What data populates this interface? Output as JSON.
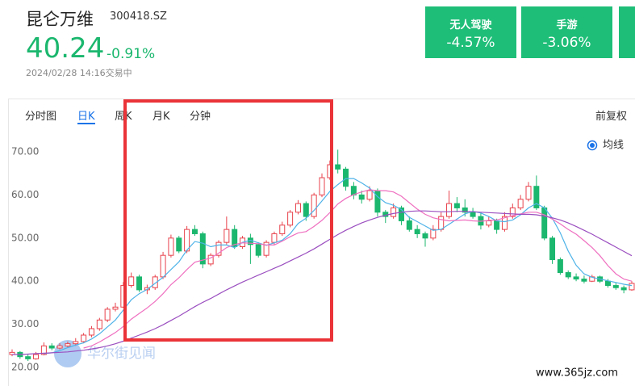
{
  "quote": {
    "name": "昆仑万维",
    "code": "300418.SZ",
    "price": "40.24",
    "change": "-0.91%",
    "time": "2024/02/28 14:16交易中"
  },
  "sectors": [
    {
      "name": "无人驾驶",
      "change": "-4.57%"
    },
    {
      "name": "手游",
      "change": "-3.06%"
    }
  ],
  "tabs": [
    "分时图",
    "日K",
    "周K",
    "月K",
    "分钟",
    "前复权"
  ],
  "watermark": [
    "华尔街见闻",
    "www.365jz.com"
  ],
  "chart_data": {
    "type": "candlestick",
    "legend": "均线",
    "grid": false,
    "up_color": "#e8424c",
    "down_color": "#1bb76e",
    "ylim": [
      16,
      75
    ],
    "yticks": [
      {
        "value": 20,
        "label": "20.00"
      },
      {
        "value": 30,
        "label": "30.00"
      },
      {
        "value": 40,
        "label": "40.00"
      },
      {
        "value": 50,
        "label": "50.00"
      },
      {
        "value": 60,
        "label": "60.00"
      },
      {
        "value": 70,
        "label": "70.00"
      }
    ],
    "candles": [
      [
        23,
        24.2,
        22.6,
        23.5
      ],
      [
        23.5,
        23.8,
        22,
        22.5
      ],
      [
        22.5,
        23,
        21.5,
        22
      ],
      [
        22,
        23.6,
        21.8,
        23
      ],
      [
        23,
        25.8,
        22.8,
        25
      ],
      [
        25,
        25.6,
        24,
        24.5
      ],
      [
        24.5,
        25.6,
        24.2,
        25
      ],
      [
        25,
        26,
        24.6,
        25.5
      ],
      [
        25.5,
        26.8,
        25,
        26
      ],
      [
        26,
        28,
        25.6,
        27.5
      ],
      [
        27.5,
        29.6,
        27,
        29
      ],
      [
        29,
        31.5,
        28.5,
        31
      ],
      [
        31,
        34,
        30.5,
        33.5
      ],
      [
        33.5,
        35,
        33,
        34
      ],
      [
        34,
        39.8,
        33.8,
        39
      ],
      [
        39,
        42,
        38.5,
        41
      ],
      [
        41,
        41.5,
        37.5,
        38
      ],
      [
        38,
        39.2,
        37,
        38.5
      ],
      [
        38.5,
        41.5,
        38,
        41
      ],
      [
        41,
        46.8,
        40.5,
        46
      ],
      [
        46,
        50.8,
        45.5,
        50
      ],
      [
        50,
        50.5,
        46.5,
        47
      ],
      [
        47,
        52.8,
        46.5,
        52
      ],
      [
        52,
        53,
        50.5,
        51
      ],
      [
        51,
        51.5,
        43,
        44
      ],
      [
        44,
        46.5,
        43.5,
        46
      ],
      [
        46,
        49.5,
        45.5,
        49
      ],
      [
        49,
        55,
        48.5,
        52
      ],
      [
        52,
        53,
        47.5,
        48
      ],
      [
        48,
        50.5,
        47.5,
        50
      ],
      [
        50,
        51,
        44,
        48.5
      ],
      [
        48.5,
        49,
        45.5,
        46
      ],
      [
        46,
        49.5,
        45.5,
        49
      ],
      [
        49,
        51.5,
        48.5,
        51
      ],
      [
        51,
        53.8,
        50.5,
        53
      ],
      [
        53,
        56.5,
        52.5,
        56
      ],
      [
        56,
        58.8,
        55.5,
        58
      ],
      [
        58,
        58.5,
        54,
        55
      ],
      [
        55,
        60.5,
        54.5,
        60
      ],
      [
        60,
        65,
        59.5,
        64
      ],
      [
        64,
        68,
        63.5,
        67
      ],
      [
        67,
        70.5,
        65,
        66
      ],
      [
        66,
        66.5,
        61,
        62
      ],
      [
        62,
        63,
        59,
        60
      ],
      [
        60,
        61,
        58,
        59
      ],
      [
        59,
        62,
        58.5,
        61
      ],
      [
        61,
        61.5,
        55,
        56
      ],
      [
        56,
        56.5,
        53.5,
        55
      ],
      [
        55,
        58,
        54.5,
        57
      ],
      [
        57,
        57.5,
        53,
        54
      ],
      [
        54,
        55,
        51.5,
        52
      ],
      [
        52,
        53,
        50,
        51
      ],
      [
        51,
        51.5,
        48,
        50
      ],
      [
        50,
        53,
        49.5,
        52
      ],
      [
        52,
        56,
        51.5,
        55
      ],
      [
        55,
        61,
        54.5,
        58
      ],
      [
        58,
        59.5,
        56,
        57
      ],
      [
        57,
        59,
        55,
        56
      ],
      [
        56,
        57,
        54.5,
        55
      ],
      [
        55,
        56,
        52,
        53
      ],
      [
        53,
        55,
        52.5,
        54
      ],
      [
        54,
        54.5,
        51,
        52
      ],
      [
        52,
        56,
        51.5,
        55
      ],
      [
        55,
        58,
        54.5,
        57
      ],
      [
        57,
        60,
        56.5,
        59
      ],
      [
        59,
        63,
        58.5,
        62
      ],
      [
        62,
        64.5,
        56.5,
        57
      ],
      [
        57,
        57.5,
        49.5,
        50
      ],
      [
        50,
        50.5,
        44,
        45
      ],
      [
        45,
        45.5,
        41.5,
        42
      ],
      [
        42,
        42.5,
        40.5,
        41
      ],
      [
        41,
        41.8,
        40,
        40.5
      ],
      [
        40.5,
        41.3,
        39.5,
        40
      ],
      [
        40,
        41.5,
        39.8,
        41
      ],
      [
        41,
        41.3,
        39.6,
        40
      ],
      [
        40,
        40.5,
        38.5,
        39
      ],
      [
        39,
        39.6,
        38,
        38.5
      ],
      [
        38.5,
        39,
        37.2,
        38
      ],
      [
        38,
        40,
        37.8,
        39.5
      ]
    ],
    "series": [
      {
        "color": "#4fb3e8",
        "values": [
          null,
          null,
          null,
          null,
          23.2,
          23.4,
          23.9,
          24.6,
          25.2,
          25.7,
          26.6,
          27.8,
          29.4,
          31,
          33.3,
          35.7,
          37.1,
          38.1,
          39.5,
          40.9,
          42.7,
          44.5,
          47.2,
          49.2,
          48.8,
          48,
          48.4,
          48.4,
          47.8,
          49,
          49.5,
          48.9,
          48.3,
          48.9,
          49.5,
          51,
          53.4,
          54.6,
          56.4,
          58.6,
          60.8,
          62.4,
          63.8,
          63.8,
          62.8,
          61.6,
          59.6,
          58.2,
          57.6,
          56.6,
          54.8,
          53.8,
          52.8,
          51.8,
          52,
          53.2,
          54.4,
          55.6,
          56.2,
          55.8,
          55,
          54,
          53.8,
          54.2,
          55.4,
          57,
          58,
          57,
          54.6,
          51.2,
          47,
          43.7,
          41.7,
          40.9,
          40.5,
          40.1,
          39.7,
          39.3,
          39
        ]
      },
      {
        "color": "#ef6fc0",
        "values": [
          null,
          null,
          null,
          null,
          null,
          null,
          null,
          null,
          null,
          24.5,
          25,
          25.9,
          27,
          28.1,
          29.5,
          31.2,
          32.5,
          33.8,
          35.3,
          37.1,
          39.2,
          40.8,
          42.7,
          44.4,
          44.9,
          45.4,
          46.5,
          47.8,
          48.5,
          48.9,
          48.8,
          48.7,
          48.4,
          48.4,
          49.3,
          50.3,
          51.2,
          51.5,
          52.7,
          54.1,
          55.9,
          57.9,
          59.2,
          60.1,
          60.7,
          61.2,
          61,
          61,
          60.7,
          59.7,
          58.2,
          56.7,
          55.5,
          54.7,
          54.3,
          54,
          54.1,
          54.2,
          54,
          53.9,
          54.1,
          54.2,
          54.7,
          55.2,
          55.6,
          56,
          56,
          55.4,
          54.4,
          53.3,
          52,
          50.9,
          49.4,
          47.8,
          45.9,
          43.6,
          41.7,
          40.5,
          40
        ]
      },
      {
        "color": "#9b4fc0",
        "values": [
          23,
          23,
          23.1,
          23.2,
          23.3,
          23.4,
          23.5,
          23.6,
          23.8,
          24,
          24.3,
          24.6,
          25,
          25.5,
          26.1,
          26.8,
          27.5,
          28.2,
          29,
          29.9,
          30.9,
          31.9,
          33,
          34.1,
          35.1,
          36,
          37,
          38,
          38.9,
          39.8,
          40.6,
          41.4,
          42.2,
          43,
          43.8,
          44.7,
          45.6,
          46.5,
          47.5,
          48.6,
          49.7,
          50.8,
          51.8,
          52.7,
          53.5,
          54.2,
          54.8,
          55.3,
          55.7,
          56,
          56.2,
          56.3,
          56.3,
          56.2,
          56.1,
          56.1,
          56.2,
          56.2,
          56.1,
          56,
          55.9,
          55.8,
          55.7,
          55.6,
          55.5,
          55.5,
          55.4,
          55.1,
          54.7,
          54.2,
          53.5,
          52.7,
          51.8,
          50.9,
          49.9,
          48.9,
          47.9,
          46.9,
          45.9
        ]
      }
    ]
  }
}
